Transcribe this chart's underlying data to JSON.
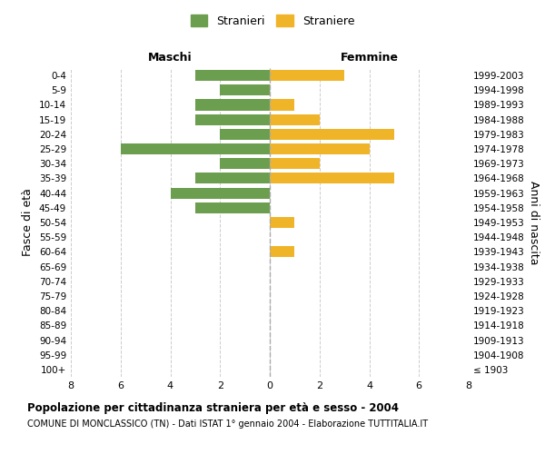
{
  "age_groups": [
    "100+",
    "95-99",
    "90-94",
    "85-89",
    "80-84",
    "75-79",
    "70-74",
    "65-69",
    "60-64",
    "55-59",
    "50-54",
    "45-49",
    "40-44",
    "35-39",
    "30-34",
    "25-29",
    "20-24",
    "15-19",
    "10-14",
    "5-9",
    "0-4"
  ],
  "birth_years": [
    "≤ 1903",
    "1904-1908",
    "1909-1913",
    "1914-1918",
    "1919-1923",
    "1924-1928",
    "1929-1933",
    "1934-1938",
    "1939-1943",
    "1944-1948",
    "1949-1953",
    "1954-1958",
    "1959-1963",
    "1964-1968",
    "1969-1973",
    "1974-1978",
    "1979-1983",
    "1984-1988",
    "1989-1993",
    "1994-1998",
    "1999-2003"
  ],
  "males": [
    0,
    0,
    0,
    0,
    0,
    0,
    0,
    0,
    0,
    0,
    0,
    3,
    4,
    3,
    2,
    6,
    2,
    3,
    3,
    2,
    3
  ],
  "females": [
    0,
    0,
    0,
    0,
    0,
    0,
    0,
    0,
    1,
    0,
    1,
    0,
    0,
    5,
    2,
    4,
    5,
    2,
    1,
    0,
    3
  ],
  "male_color": "#6b9e4e",
  "female_color": "#f0b429",
  "title": "Popolazione per cittadinanza straniera per età e sesso - 2004",
  "subtitle": "COMUNE DI MONCLASSICO (TN) - Dati ISTAT 1° gennaio 2004 - Elaborazione TUTTITALIA.IT",
  "ylabel_left": "Fasce di età",
  "ylabel_right": "Anni di nascita",
  "xlabel_left": "Maschi",
  "xlabel_right": "Femmine",
  "legend_male": "Stranieri",
  "legend_female": "Straniere",
  "xlim": 8,
  "background_color": "#ffffff",
  "grid_color": "#cccccc"
}
